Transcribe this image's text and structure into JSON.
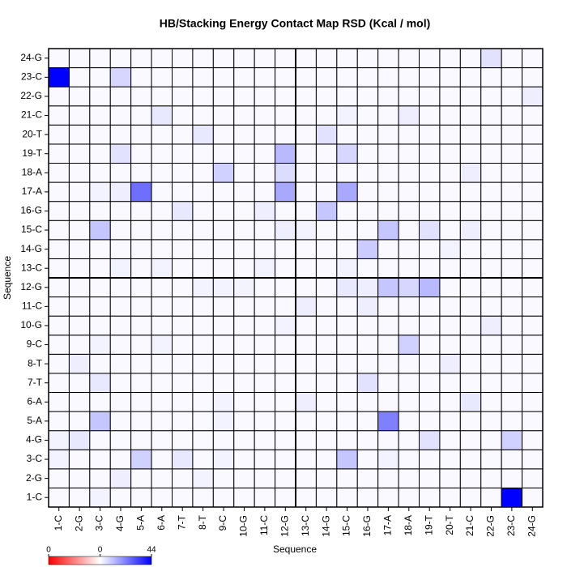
{
  "chart_data": {
    "type": "heatmap",
    "title": "HB/Stacking Energy Contact Map RSD (Kcal / mol)",
    "xlabel": "Sequence",
    "ylabel": "Sequence",
    "x_categories": [
      "1-C",
      "2-G",
      "3-C",
      "4-G",
      "5-A",
      "6-A",
      "7-T",
      "8-T",
      "9-C",
      "10-G",
      "11-C",
      "12-G",
      "13-C",
      "14-G",
      "15-C",
      "16-G",
      "17-A",
      "18-A",
      "19-T",
      "20-T",
      "21-C",
      "22-G",
      "23-C",
      "24-G"
    ],
    "y_categories": [
      "1-C",
      "2-G",
      "3-C",
      "4-G",
      "5-A",
      "6-A",
      "7-T",
      "8-T",
      "9-C",
      "10-G",
      "11-C",
      "12-G",
      "13-C",
      "14-G",
      "15-C",
      "16-G",
      "17-A",
      "18-A",
      "19-T",
      "20-T",
      "21-C",
      "22-G",
      "23-C",
      "24-G"
    ],
    "z": [
      [
        1,
        1,
        2,
        1,
        1,
        1,
        1,
        1,
        1,
        1,
        1,
        1,
        1,
        1,
        1,
        1,
        1,
        1,
        1,
        1,
        1,
        1,
        44,
        1
      ],
      [
        1,
        1,
        1,
        3,
        1,
        1,
        1,
        2,
        1,
        1,
        1,
        1,
        1,
        1,
        1,
        1,
        1,
        1,
        1,
        1,
        1,
        1,
        1,
        1
      ],
      [
        2,
        1,
        1,
        1,
        8,
        1,
        4,
        1,
        2,
        1,
        1,
        1,
        1,
        1,
        10,
        1,
        2,
        1,
        1,
        1,
        1,
        1,
        1,
        1
      ],
      [
        2,
        4,
        1,
        1,
        1,
        1,
        1,
        1,
        1,
        1,
        1,
        1,
        1,
        1,
        1,
        1,
        1,
        1,
        5,
        1,
        1,
        1,
        8,
        1
      ],
      [
        1,
        1,
        10,
        1,
        1,
        1,
        1,
        1,
        2,
        1,
        1,
        1,
        1,
        1,
        1,
        1,
        22,
        1,
        1,
        1,
        1,
        1,
        1,
        1
      ],
      [
        1,
        1,
        1,
        1,
        1,
        1,
        1,
        1,
        2,
        1,
        1,
        1,
        3,
        1,
        1,
        1,
        1,
        1,
        1,
        1,
        4,
        1,
        1,
        1
      ],
      [
        1,
        1,
        4,
        1,
        1,
        1,
        1,
        1,
        1,
        1,
        1,
        1,
        1,
        1,
        1,
        5,
        1,
        1,
        1,
        1,
        1,
        1,
        1,
        1
      ],
      [
        1,
        3,
        1,
        1,
        1,
        1,
        1,
        1,
        1,
        1,
        1,
        1,
        1,
        1,
        1,
        1,
        1,
        1,
        1,
        3,
        1,
        1,
        1,
        1
      ],
      [
        1,
        1,
        2,
        1,
        1,
        2,
        1,
        1,
        1,
        1,
        1,
        1,
        1,
        1,
        1,
        1,
        1,
        8,
        1,
        1,
        1,
        1,
        1,
        1
      ],
      [
        1,
        1,
        1,
        1,
        1,
        1,
        1,
        1,
        1,
        1,
        1,
        2,
        1,
        1,
        1,
        1,
        1,
        1,
        1,
        1,
        1,
        3,
        1,
        1
      ],
      [
        1,
        1,
        1,
        1,
        1,
        1,
        1,
        1,
        1,
        1,
        1,
        1,
        3,
        1,
        1,
        3,
        1,
        1,
        1,
        1,
        1,
        1,
        1,
        1
      ],
      [
        1,
        1,
        1,
        1,
        1,
        1,
        1,
        2,
        2,
        2,
        1,
        1,
        1,
        1,
        4,
        3,
        10,
        7,
        12,
        1,
        1,
        1,
        1,
        1
      ],
      [
        1,
        1,
        1,
        2,
        1,
        2,
        1,
        1,
        1,
        1,
        2,
        1,
        1,
        1,
        2,
        1,
        1,
        1,
        1,
        1,
        1,
        1,
        1,
        1
      ],
      [
        1,
        1,
        1,
        1,
        1,
        1,
        1,
        1,
        1,
        1,
        1,
        1,
        1,
        1,
        1,
        9,
        1,
        1,
        1,
        2,
        1,
        1,
        1,
        1
      ],
      [
        1,
        1,
        10,
        1,
        1,
        1,
        1,
        1,
        1,
        1,
        1,
        3,
        2,
        1,
        1,
        1,
        10,
        1,
        5,
        1,
        3,
        1,
        1,
        1
      ],
      [
        1,
        1,
        1,
        1,
        1,
        1,
        4,
        1,
        1,
        1,
        3,
        1,
        1,
        10,
        1,
        1,
        1,
        1,
        1,
        1,
        1,
        1,
        1,
        1
      ],
      [
        1,
        1,
        2,
        3,
        25,
        1,
        1,
        1,
        1,
        1,
        1,
        15,
        1,
        1,
        15,
        1,
        1,
        1,
        1,
        1,
        1,
        1,
        1,
        1
      ],
      [
        1,
        1,
        1,
        1,
        1,
        1,
        1,
        1,
        8,
        1,
        1,
        6,
        1,
        1,
        1,
        1,
        1,
        1,
        1,
        1,
        3,
        1,
        1,
        1
      ],
      [
        1,
        1,
        1,
        5,
        1,
        1,
        1,
        1,
        1,
        1,
        1,
        12,
        1,
        1,
        7,
        1,
        1,
        1,
        1,
        1,
        1,
        1,
        1,
        1
      ],
      [
        1,
        1,
        1,
        1,
        1,
        1,
        1,
        4,
        1,
        1,
        1,
        1,
        1,
        5,
        1,
        1,
        1,
        1,
        1,
        1,
        1,
        1,
        1,
        1
      ],
      [
        1,
        1,
        1,
        1,
        1,
        4,
        1,
        1,
        1,
        1,
        1,
        1,
        1,
        1,
        2,
        1,
        1,
        3,
        1,
        1,
        1,
        1,
        1,
        1
      ],
      [
        1,
        1,
        1,
        1,
        1,
        1,
        1,
        1,
        1,
        1,
        1,
        1,
        1,
        1,
        1,
        1,
        1,
        1,
        1,
        1,
        1,
        1,
        1,
        3
      ],
      [
        44,
        1,
        1,
        7,
        1,
        1,
        1,
        1,
        1,
        1,
        1,
        1,
        1,
        1,
        1,
        1,
        1,
        1,
        1,
        1,
        1,
        1,
        1,
        1
      ],
      [
        1,
        1,
        1,
        1,
        1,
        1,
        1,
        1,
        1,
        1,
        1,
        1,
        1,
        1,
        1,
        1,
        1,
        1,
        1,
        1,
        1,
        5,
        1,
        1
      ]
    ],
    "zlim": [
      -0.4,
      44
    ],
    "colorbar_ticks": [
      {
        "value": -0.4,
        "label": "0"
      },
      0,
      44
    ],
    "colors": {
      "low": "#ff0000",
      "mid": "#ffffff",
      "high": "#0000ff"
    }
  }
}
